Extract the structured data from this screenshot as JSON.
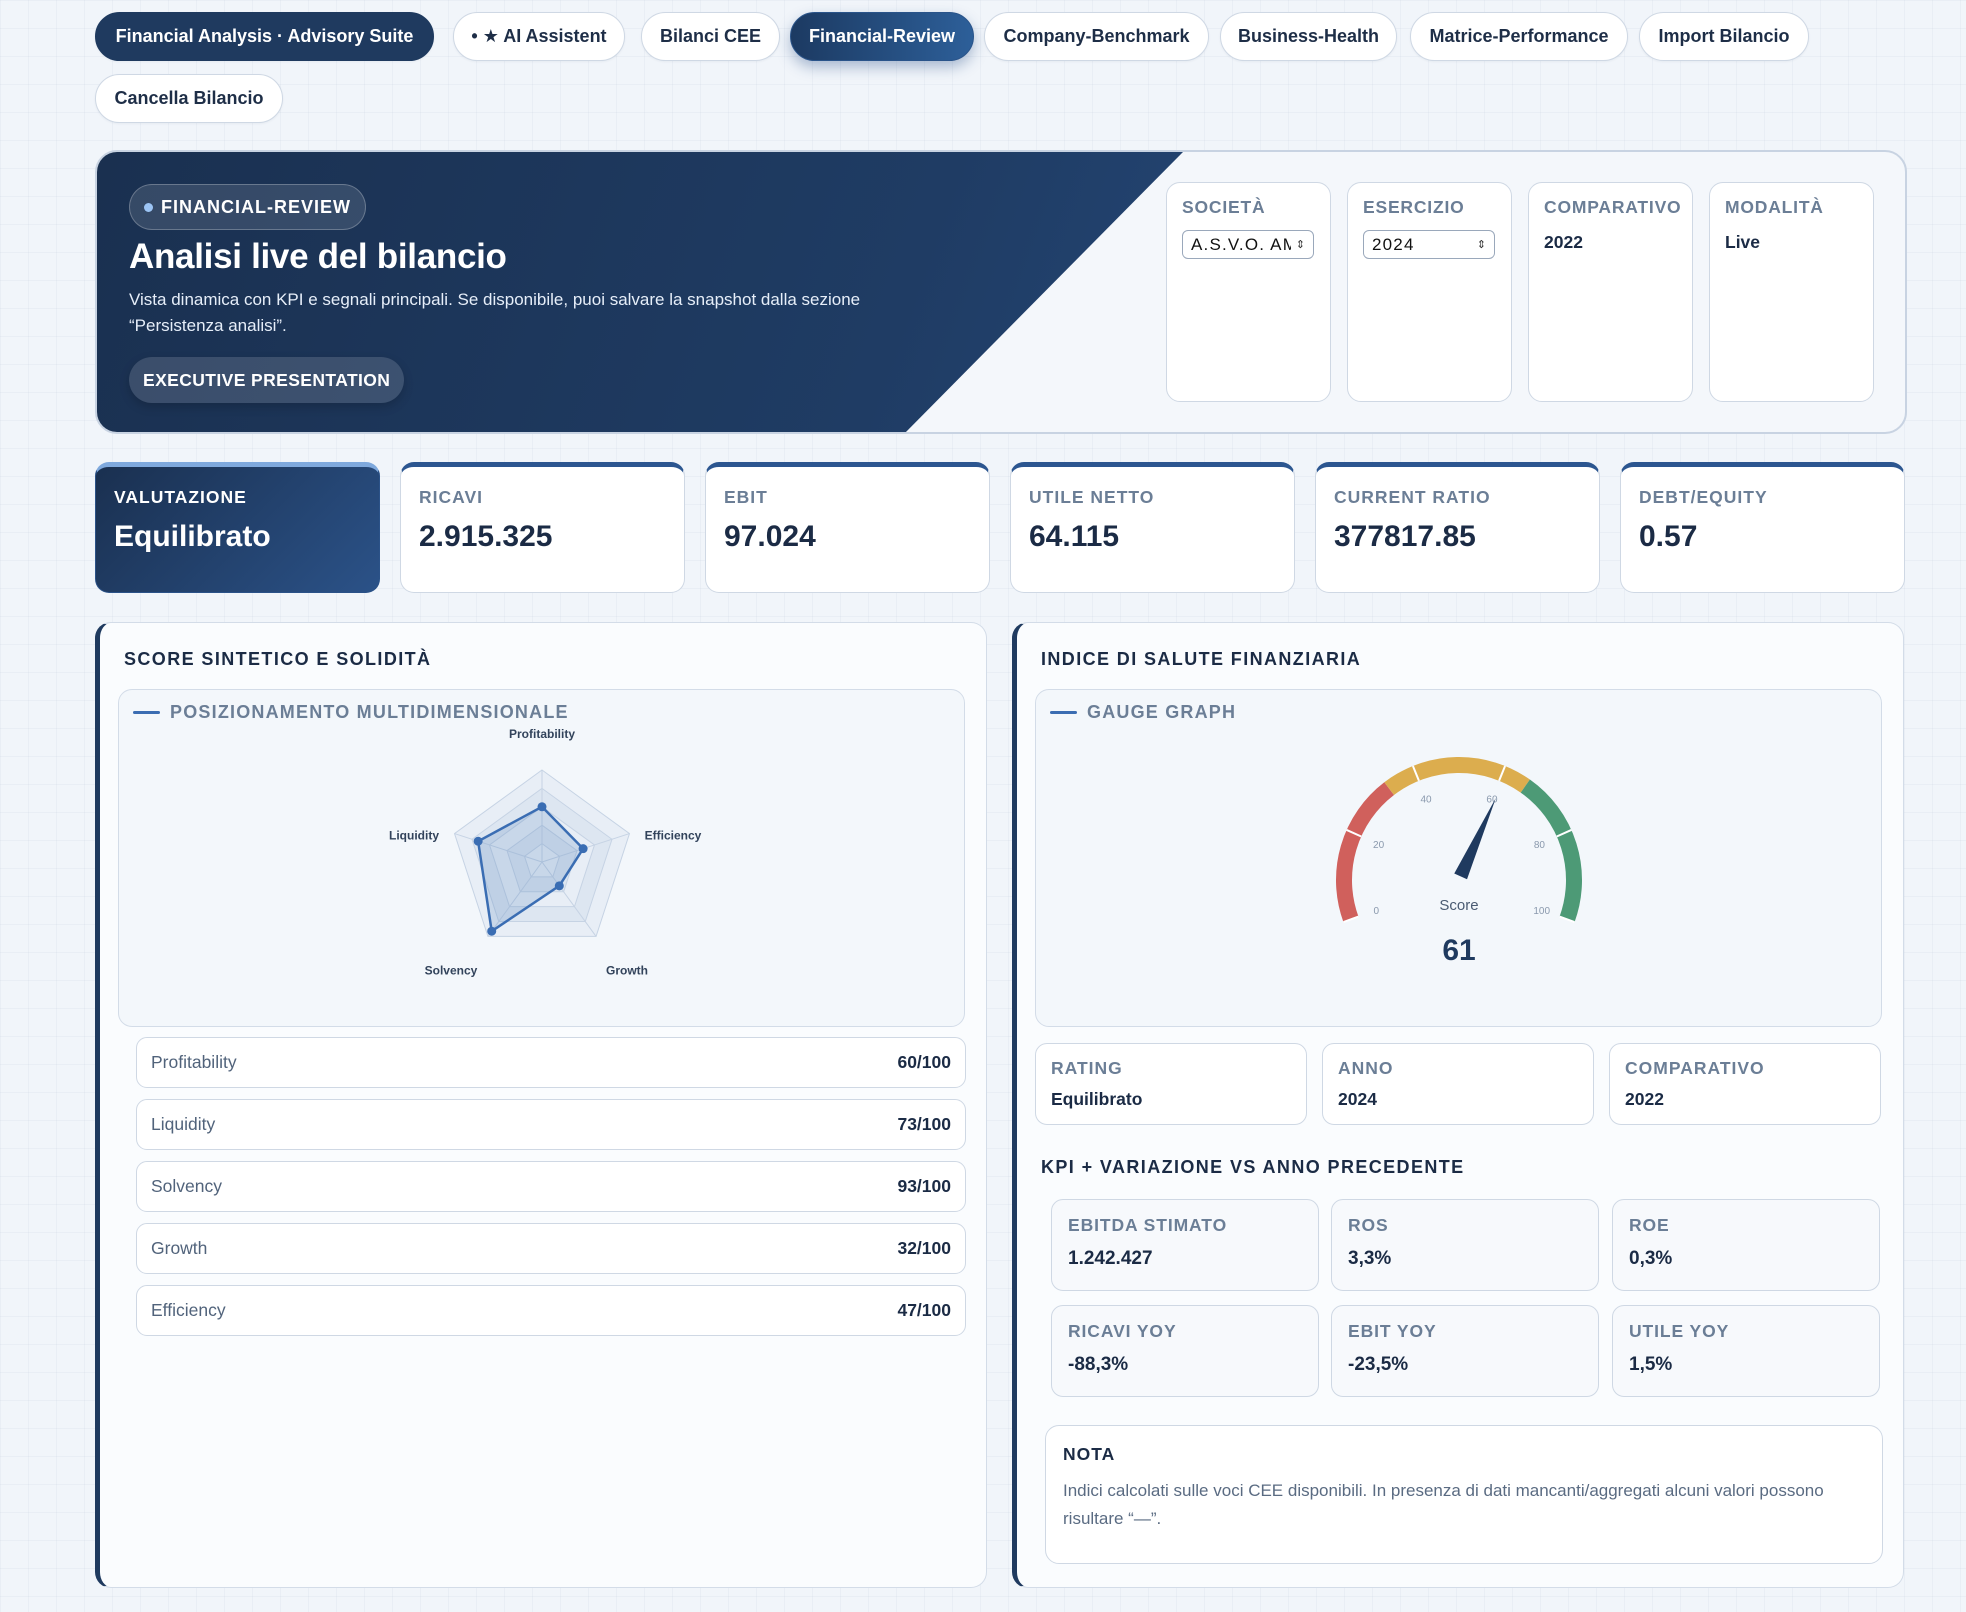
{
  "nav": {
    "brand": "Financial Analysis · Advisory Suite",
    "items": [
      {
        "label": "• ★ AI Assistent"
      },
      {
        "label": "Bilanci CEE"
      },
      {
        "label": "Financial-Review"
      },
      {
        "label": "Company-Benchmark"
      },
      {
        "label": "Business-Health"
      },
      {
        "label": "Matrice-Performance"
      },
      {
        "label": "Import Bilancio"
      },
      {
        "label": "Cancella Bilancio"
      }
    ],
    "active": "Financial-Review"
  },
  "hero": {
    "badge": "FINANCIAL-REVIEW",
    "title": "Analisi live del bilancio",
    "description": "Vista dinamica con KPI e segnali principali. Se disponibile, puoi salvare la snapshot dalla sezione “Persistenza analisi”.",
    "button": "EXECUTIVE PRESENTATION",
    "meta": {
      "societa": {
        "label": "SOCIETÀ",
        "value": "A.S.V.O. AMBIENTE"
      },
      "esercizio": {
        "label": "ESERCIZIO",
        "value": "2024"
      },
      "comparativo": {
        "label": "COMPARATIVO",
        "value": "2022"
      },
      "modalita": {
        "label": "MODALITÀ",
        "value": "Live"
      }
    }
  },
  "kpis": [
    {
      "label": "VALUTAZIONE",
      "value": "Equilibrato"
    },
    {
      "label": "RICAVI",
      "value": "2.915.325"
    },
    {
      "label": "EBIT",
      "value": "97.024"
    },
    {
      "label": "UTILE NETTO",
      "value": "64.115"
    },
    {
      "label": "CURRENT RATIO",
      "value": "377817.85"
    },
    {
      "label": "DEBT/EQUITY",
      "value": "0.57"
    }
  ],
  "left_panel": {
    "title": "SCORE SINTETICO E SOLIDITÀ",
    "subtitle": "POSIZIONAMENTO MULTIDIMENSIONALE",
    "scores": [
      {
        "name": "Profitability",
        "value": "60/100"
      },
      {
        "name": "Liquidity",
        "value": "73/100"
      },
      {
        "name": "Solvency",
        "value": "93/100"
      },
      {
        "name": "Growth",
        "value": "32/100"
      },
      {
        "name": "Efficiency",
        "value": "47/100"
      }
    ]
  },
  "right_panel": {
    "title": "INDICE DI SALUTE FINANZIARIA",
    "subtitle": "GAUGE GRAPH",
    "gauge_label": "Score",
    "gauge_value": "61",
    "info": [
      {
        "label": "RATING",
        "value": "Equilibrato"
      },
      {
        "label": "ANNO",
        "value": "2024"
      },
      {
        "label": "COMPARATIVO",
        "value": "2022"
      }
    ],
    "kpi_title": "KPI + VARIAZIONE VS ANNO PRECEDENTE",
    "deltas": [
      {
        "label": "EBITDA STIMATO",
        "value": "1.242.427"
      },
      {
        "label": "ROS",
        "value": "3,3%"
      },
      {
        "label": "ROE",
        "value": "0,3%"
      },
      {
        "label": "RICAVI YOY",
        "value": "-88,3%"
      },
      {
        "label": "EBIT YOY",
        "value": "-23,5%"
      },
      {
        "label": "UTILE YOY",
        "value": "1,5%"
      }
    ],
    "note_title": "NOTA",
    "note_text": "Indici calcolati sulle voci CEE disponibili. In presenza di dati mancanti/aggregati alcuni valori possono risultare “—”."
  },
  "chart_data": [
    {
      "type": "radar",
      "axes": [
        "Profitability",
        "Efficiency",
        "Growth",
        "Solvency",
        "Liquidity"
      ],
      "values": [
        60,
        47,
        32,
        93,
        73
      ],
      "range": [
        0,
        100
      ],
      "color": "#3a6db3"
    },
    {
      "type": "gauge",
      "label": "Score",
      "value": 61,
      "range": [
        0,
        100
      ],
      "ticks": [
        "0",
        "20",
        "40",
        "60",
        "80",
        "100"
      ],
      "bands": [
        {
          "from": 0,
          "to": 33,
          "color": "#d0605c"
        },
        {
          "from": 33,
          "to": 66,
          "color": "#dcad4e"
        },
        {
          "from": 66,
          "to": 100,
          "color": "#4d9a76"
        }
      ]
    }
  ]
}
